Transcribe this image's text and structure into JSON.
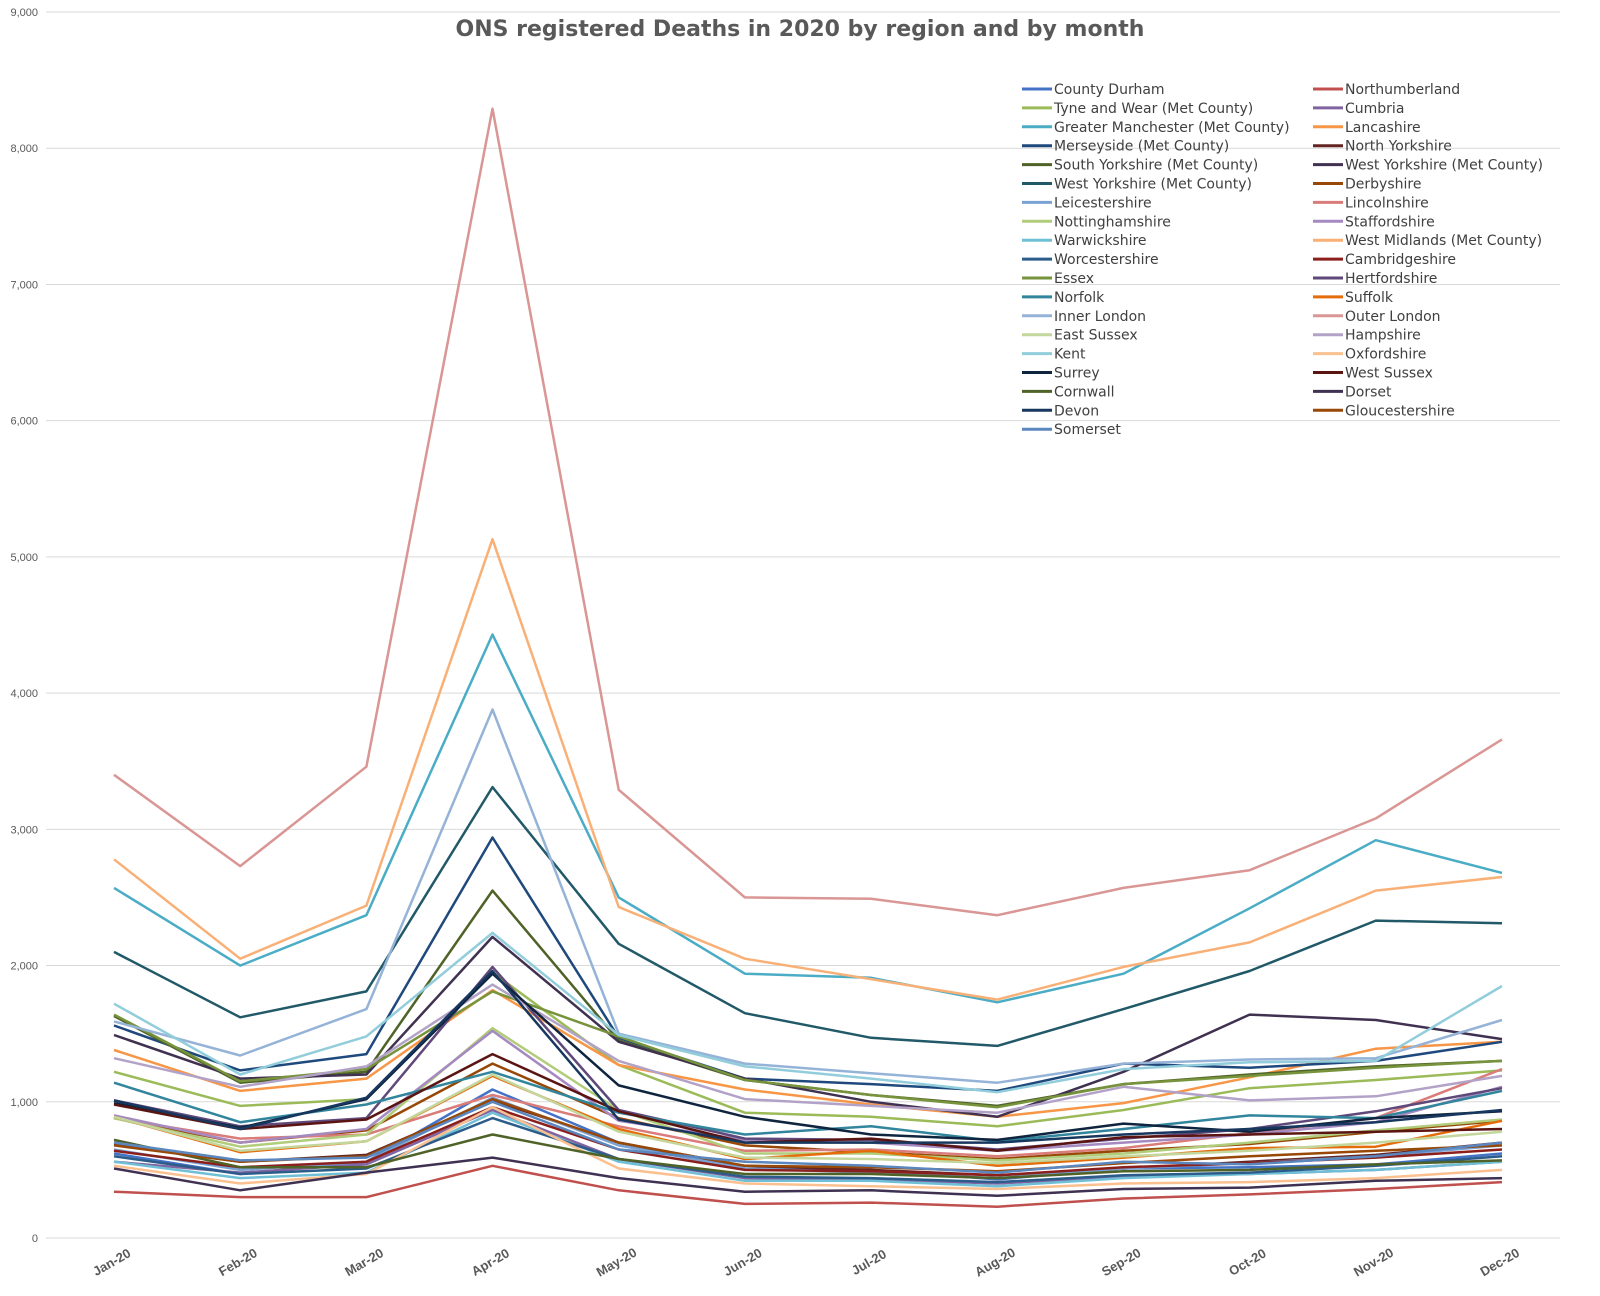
{
  "chart_data": {
    "type": "line",
    "title": "ONS registered Deaths in 2020 by region and by month",
    "xlabel": "",
    "ylabel": "",
    "ylim": [
      0,
      9000
    ],
    "yticks": [
      0,
      1000,
      2000,
      3000,
      4000,
      5000,
      6000,
      7000,
      8000,
      9000
    ],
    "ytick_labels": [
      "0",
      "1,000",
      "2,000",
      "3,000",
      "4,000",
      "5,000",
      "6,000",
      "7,000",
      "8,000",
      "9,000"
    ],
    "grid": true,
    "legend": "top-right",
    "categories": [
      "Jan-20",
      "Feb-20",
      "Mar-20",
      "Apr-20",
      "May-20",
      "Jun-20",
      "Jul-20",
      "Aug-20",
      "Sep-20",
      "Oct-20",
      "Nov-20",
      "Dec-20"
    ],
    "series": [
      {
        "name": "County Durham",
        "color": "#4472c4",
        "values": [
          620,
          470,
          560,
          1090,
          700,
          510,
          500,
          430,
          510,
          520,
          540,
          620
        ]
      },
      {
        "name": "Northumberland",
        "color": "#c0504d",
        "values": [
          340,
          300,
          300,
          530,
          350,
          250,
          260,
          230,
          290,
          320,
          360,
          410
        ]
      },
      {
        "name": "Tyne and Wear (Met County)",
        "color": "#9bbb59",
        "values": [
          1220,
          970,
          1020,
          1950,
          1270,
          920,
          890,
          820,
          940,
          1100,
          1160,
          1230
        ]
      },
      {
        "name": "Cumbria",
        "color": "#8064a2",
        "values": [
          560,
          480,
          540,
          940,
          580,
          440,
          430,
          400,
          450,
          470,
          500,
          560
        ]
      },
      {
        "name": "Greater Manchester (Met County)",
        "color": "#4bacc6",
        "values": [
          2570,
          2000,
          2370,
          4430,
          2500,
          1940,
          1910,
          1730,
          1940,
          2420,
          2920,
          2680
        ]
      },
      {
        "name": "Lancashire",
        "color": "#f79646",
        "values": [
          1380,
          1080,
          1170,
          1820,
          1270,
          1090,
          980,
          890,
          990,
          1180,
          1390,
          1440
        ]
      },
      {
        "name": "Merseyside (Met County)",
        "color": "#1f497d",
        "values": [
          1560,
          1230,
          1350,
          2940,
          1470,
          1170,
          1130,
          1080,
          1280,
          1250,
          1300,
          1440
        ]
      },
      {
        "name": "North Yorkshire",
        "color": "#632523",
        "values": [
          690,
          560,
          610,
          1010,
          700,
          530,
          500,
          460,
          510,
          560,
          610,
          700
        ]
      },
      {
        "name": "South Yorkshire (Met County)",
        "color": "#4f6228",
        "values": [
          1630,
          1140,
          1220,
          2550,
          1450,
          1160,
          1050,
          970,
          1130,
          1200,
          1260,
          1300
        ]
      },
      {
        "name": "West Yorkshire (Met County)",
        "color": "#403151",
        "values": [
          1490,
          1170,
          1200,
          2210,
          1440,
          1170,
          1000,
          890,
          1220,
          1640,
          1600,
          1460
        ]
      },
      {
        "name": "West Yorkshire (Met County)",
        "color": "#215968",
        "values": [
          2100,
          1620,
          1810,
          3310,
          2160,
          1650,
          1470,
          1410,
          1680,
          1960,
          2330,
          2310
        ]
      },
      {
        "name": "Derbyshire",
        "color": "#974806",
        "values": [
          880,
          700,
          790,
          1280,
          880,
          680,
          630,
          580,
          640,
          690,
          780,
          860
        ]
      },
      {
        "name": "Leicestershire",
        "color": "#7aa2d2",
        "values": [
          650,
          500,
          560,
          1030,
          680,
          510,
          480,
          440,
          510,
          550,
          600,
          680
        ]
      },
      {
        "name": "Lincolnshire",
        "color": "#d97c7a",
        "values": [
          880,
          730,
          760,
          1050,
          820,
          640,
          650,
          600,
          660,
          770,
          880,
          1240
        ]
      },
      {
        "name": "Nottinghamshire",
        "color": "#b1cc7a",
        "values": [
          880,
          670,
          760,
          1540,
          940,
          620,
          620,
          570,
          620,
          700,
          790,
          870
        ]
      },
      {
        "name": "Staffordshire",
        "color": "#a589c1",
        "values": [
          900,
          700,
          800,
          1520,
          860,
          720,
          700,
          640,
          700,
          760,
          850,
          1110
        ]
      },
      {
        "name": "Warwickshire",
        "color": "#6fc0d6",
        "values": [
          560,
          440,
          480,
          920,
          560,
          420,
          420,
          380,
          440,
          470,
          500,
          560
        ]
      },
      {
        "name": "West Midlands (Met County)",
        "color": "#f9b076",
        "values": [
          2780,
          2050,
          2440,
          5130,
          2430,
          2050,
          1900,
          1750,
          1990,
          2170,
          2550,
          2650
        ]
      },
      {
        "name": "Worcestershire",
        "color": "#2b5c8a",
        "values": [
          600,
          470,
          510,
          880,
          580,
          450,
          440,
          410,
          460,
          480,
          530,
          600
        ]
      },
      {
        "name": "Cambridgeshire",
        "color": "#8b1f1c",
        "values": [
          640,
          520,
          560,
          960,
          650,
          500,
          490,
          460,
          520,
          550,
          590,
          650
        ]
      },
      {
        "name": "Essex",
        "color": "#77933c",
        "values": [
          1640,
          1150,
          1240,
          1810,
          1480,
          1160,
          1050,
          960,
          1130,
          1190,
          1250,
          1300
        ]
      },
      {
        "name": "Hertfordshire",
        "color": "#5f497a",
        "values": [
          1010,
          820,
          880,
          1990,
          940,
          730,
          720,
          650,
          730,
          800,
          930,
          1100
        ]
      },
      {
        "name": "Norfolk",
        "color": "#31859c",
        "values": [
          1140,
          850,
          980,
          1220,
          920,
          760,
          820,
          710,
          800,
          900,
          880,
          1080
        ]
      },
      {
        "name": "Suffolk",
        "color": "#e46c0a",
        "values": [
          890,
          630,
          710,
          1190,
          800,
          580,
          640,
          530,
          590,
          660,
          670,
          860
        ]
      },
      {
        "name": "Inner London",
        "color": "#95b3d7",
        "values": [
          1590,
          1340,
          1680,
          3880,
          1500,
          1280,
          1210,
          1140,
          1280,
          1310,
          1320,
          1600
        ]
      },
      {
        "name": "Outer London",
        "color": "#d99694",
        "values": [
          3400,
          2730,
          3460,
          8290,
          3290,
          2500,
          2490,
          2370,
          2570,
          2700,
          3080,
          3660
        ]
      },
      {
        "name": "East Sussex",
        "color": "#c3d69b",
        "values": [
          890,
          640,
          710,
          1200,
          780,
          590,
          580,
          550,
          600,
          640,
          700,
          780
        ]
      },
      {
        "name": "Hampshire",
        "color": "#b3a2c7",
        "values": [
          1320,
          1110,
          1260,
          1860,
          1300,
          1020,
          970,
          920,
          1110,
          1010,
          1040,
          1190
        ]
      },
      {
        "name": "Kent",
        "color": "#92cddc",
        "values": [
          1720,
          1200,
          1480,
          2240,
          1490,
          1260,
          1170,
          1070,
          1240,
          1290,
          1300,
          1850
        ]
      },
      {
        "name": "Oxfordshire",
        "color": "#fac090",
        "values": [
          530,
          400,
          470,
          960,
          510,
          400,
          380,
          360,
          400,
          410,
          440,
          500
        ]
      },
      {
        "name": "Surrey",
        "color": "#0f243e",
        "values": [
          990,
          810,
          1020,
          1940,
          1120,
          890,
          760,
          720,
          840,
          780,
          880,
          930
        ]
      },
      {
        "name": "West Sussex",
        "color": "#5a1512",
        "values": [
          980,
          800,
          870,
          1350,
          930,
          700,
          730,
          640,
          740,
          760,
          780,
          800
        ]
      },
      {
        "name": "Cornwall",
        "color": "#4f6228",
        "values": [
          720,
          520,
          520,
          760,
          580,
          470,
          470,
          440,
          490,
          500,
          540,
          570
        ]
      },
      {
        "name": "Dorset",
        "color": "#3f3151",
        "values": [
          510,
          350,
          480,
          590,
          440,
          340,
          350,
          310,
          360,
          370,
          420,
          440
        ]
      },
      {
        "name": "Devon",
        "color": "#17375e",
        "values": [
          1010,
          800,
          1030,
          1960,
          870,
          700,
          700,
          700,
          760,
          800,
          850,
          940
        ]
      },
      {
        "name": "Gloucestershire",
        "color": "#984807",
        "values": [
          680,
          560,
          600,
          1020,
          700,
          530,
          520,
          490,
          550,
          600,
          640,
          680
        ]
      },
      {
        "name": "Somerset",
        "color": "#5b87bf",
        "values": [
          700,
          570,
          590,
          1000,
          650,
          560,
          530,
          480,
          560,
          540,
          600,
          700
        ]
      }
    ]
  }
}
